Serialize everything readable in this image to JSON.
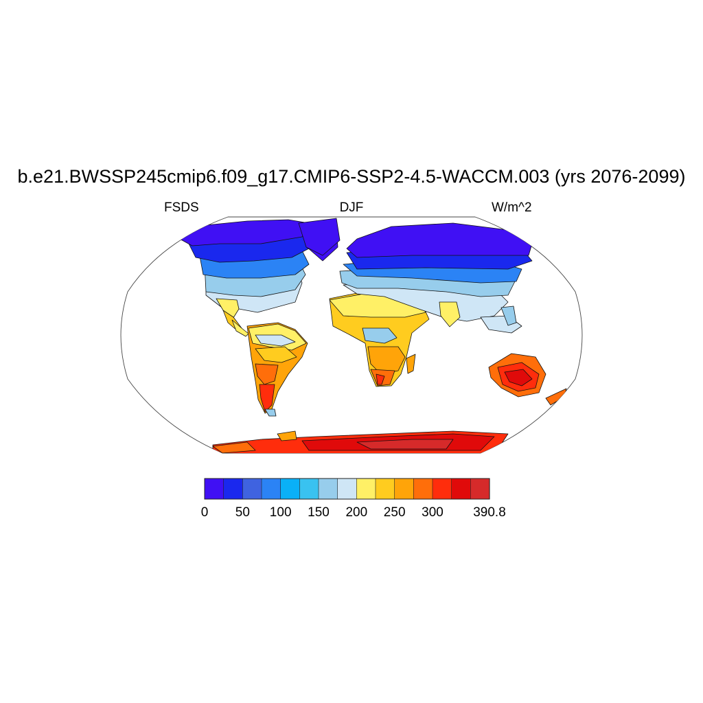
{
  "title": "b.e21.BWSSP245cmip6.f09_g17.CMIP6-SSP2-4.5-WACCM.003 (yrs 2076-2099)",
  "subtitle_left": "FSDS",
  "subtitle_center": "DJF",
  "subtitle_right": "W/m^2",
  "map": {
    "projection": "Robinson",
    "center_longitude": 0,
    "field_name": "FSDS",
    "season": "DJF",
    "units": "W/m^2",
    "coastlines": true,
    "ocean_masked": true
  },
  "colorbar": {
    "orientation": "horizontal",
    "colors": [
      "#4010f4",
      "#1a28ee",
      "#3f63e0",
      "#2b83f5",
      "#0ab0f7",
      "#39c2f0",
      "#97cdec",
      "#cfe6f6",
      "#fff066",
      "#ffcc1f",
      "#ffa409",
      "#ff6e0a",
      "#ff2d0c",
      "#e00a0a",
      "#d62a2a"
    ],
    "tick_labels": [
      "0",
      "50",
      "100",
      "150",
      "200",
      "250",
      "300",
      "390.8"
    ],
    "tick_values": [
      0,
      50,
      100,
      150,
      200,
      250,
      300,
      390.8
    ]
  }
}
